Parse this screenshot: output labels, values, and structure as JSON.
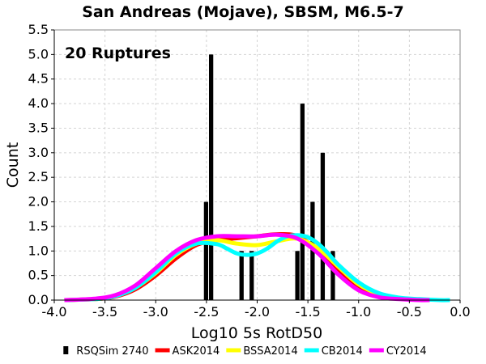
{
  "chart_data": {
    "type": "bar",
    "title": "San Andreas (Mojave), SBSM, M6.5-7",
    "annotation": "20 Ruptures",
    "xlabel": "Log10 5s RotD50",
    "ylabel": "Count",
    "xlim": [
      -4.0,
      0.0
    ],
    "ylim": [
      0.0,
      5.5
    ],
    "x_ticks": [
      "-4.0",
      "-3.5",
      "-3.0",
      "-2.5",
      "-2.0",
      "-1.5",
      "-1.0",
      "-0.5",
      "0.0"
    ],
    "y_ticks": [
      "0.0",
      "0.5",
      "1.0",
      "1.5",
      "2.0",
      "2.5",
      "3.0",
      "3.5",
      "4.0",
      "4.5",
      "5.0",
      "5.5"
    ],
    "grid": true,
    "legend_position": "bottom",
    "histogram": {
      "name": "RSQSim 2740",
      "color": "#000000",
      "bin_width": 0.05,
      "bins": [
        {
          "x": -2.5,
          "count": 2
        },
        {
          "x": -2.45,
          "count": 5
        },
        {
          "x": -2.15,
          "count": 1
        },
        {
          "x": -2.05,
          "count": 1
        },
        {
          "x": -1.6,
          "count": 1
        },
        {
          "x": -1.55,
          "count": 4
        },
        {
          "x": -1.45,
          "count": 2
        },
        {
          "x": -1.35,
          "count": 3
        },
        {
          "x": -1.25,
          "count": 1
        }
      ]
    },
    "series": [
      {
        "name": "ASK2014",
        "color": "#ff0000",
        "x": [
          -3.9,
          -3.6,
          -3.4,
          -3.2,
          -3.0,
          -2.8,
          -2.6,
          -2.4,
          -2.2,
          -2.0,
          -1.8,
          -1.6,
          -1.4,
          -1.2,
          -1.0,
          -0.8,
          -0.6,
          -0.4,
          -0.3
        ],
        "y": [
          0.0,
          0.02,
          0.07,
          0.22,
          0.5,
          0.85,
          1.12,
          1.22,
          1.26,
          1.3,
          1.34,
          1.3,
          1.0,
          0.6,
          0.28,
          0.1,
          0.03,
          0.01,
          0.0
        ]
      },
      {
        "name": "BSSA2014",
        "color": "#ffff00",
        "x": [
          -3.9,
          -3.6,
          -3.4,
          -3.2,
          -3.0,
          -2.8,
          -2.6,
          -2.4,
          -2.2,
          -2.0,
          -1.8,
          -1.6,
          -1.4,
          -1.2,
          -1.0,
          -0.8,
          -0.6,
          -0.4,
          -0.3
        ],
        "y": [
          0.0,
          0.02,
          0.08,
          0.25,
          0.55,
          0.92,
          1.15,
          1.22,
          1.15,
          1.12,
          1.2,
          1.25,
          1.05,
          0.68,
          0.32,
          0.12,
          0.04,
          0.01,
          0.0
        ]
      },
      {
        "name": "CB2014",
        "color": "#00ffff",
        "x": [
          -3.9,
          -3.6,
          -3.4,
          -3.2,
          -3.0,
          -2.8,
          -2.6,
          -2.4,
          -2.3,
          -2.2,
          -2.1,
          -2.0,
          -1.9,
          -1.8,
          -1.7,
          -1.6,
          -1.5,
          -1.4,
          -1.3,
          -1.2,
          -1.0,
          -0.8,
          -0.6,
          -0.4,
          -0.2,
          -0.1
        ],
        "y": [
          0.0,
          0.02,
          0.08,
          0.25,
          0.57,
          0.95,
          1.15,
          1.14,
          1.05,
          0.95,
          0.92,
          0.95,
          1.05,
          1.2,
          1.3,
          1.32,
          1.28,
          1.15,
          0.95,
          0.72,
          0.36,
          0.14,
          0.05,
          0.02,
          0.0,
          0.0
        ]
      },
      {
        "name": "CY2014",
        "color": "#ff00ff",
        "x": [
          -3.9,
          -3.6,
          -3.4,
          -3.2,
          -3.0,
          -2.8,
          -2.6,
          -2.4,
          -2.2,
          -2.0,
          -1.8,
          -1.6,
          -1.4,
          -1.2,
          -1.0,
          -0.8,
          -0.6,
          -0.4,
          -0.3
        ],
        "y": [
          0.0,
          0.03,
          0.1,
          0.3,
          0.65,
          1.0,
          1.22,
          1.3,
          1.3,
          1.3,
          1.33,
          1.25,
          0.95,
          0.52,
          0.2,
          0.06,
          0.02,
          0.0,
          0.0
        ]
      }
    ]
  }
}
